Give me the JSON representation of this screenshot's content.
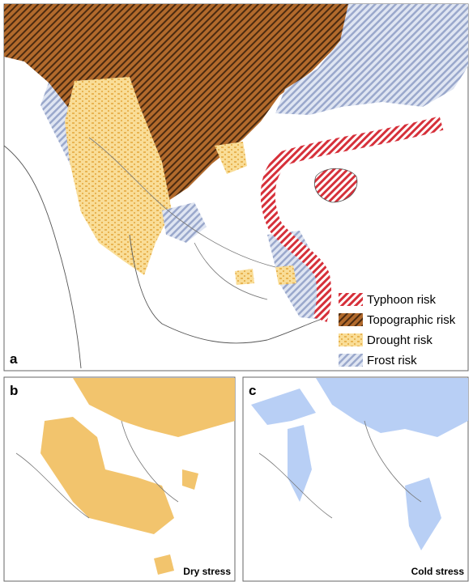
{
  "panels": [
    {
      "label": "a",
      "legend": [
        "Typhoon risk",
        "Topographic risk",
        "Drought risk",
        "Frost risk"
      ]
    },
    {
      "label": "b",
      "caption": "Dry stress"
    },
    {
      "label": "c",
      "caption": "Cold stress"
    }
  ]
}
